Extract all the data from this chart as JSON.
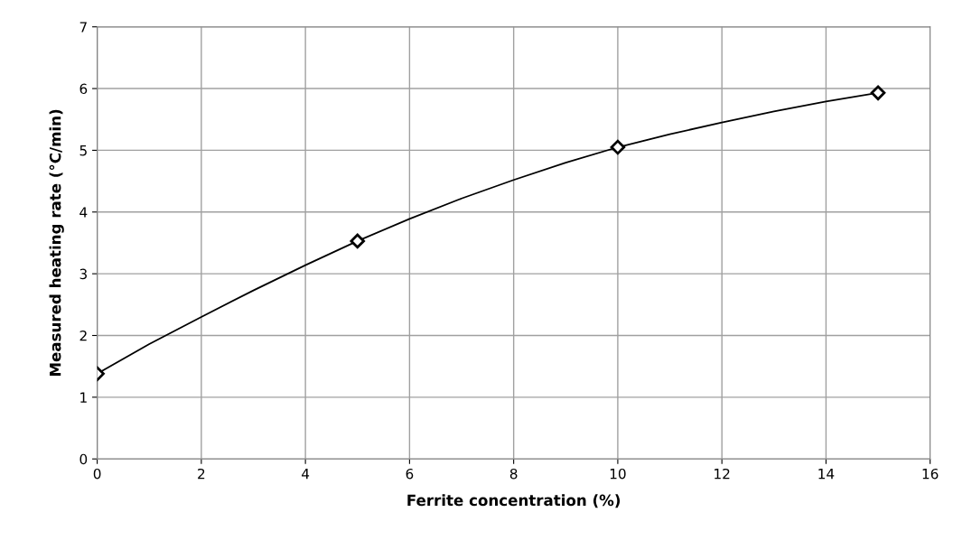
{
  "chart_data": {
    "type": "line",
    "xlabel": "Ferrite concentration (%)",
    "ylabel": "Measured heating rate (°C/min)",
    "x": [
      0,
      5,
      10,
      15
    ],
    "series": [
      {
        "type": "scatter",
        "color": "#000000",
        "values": [
          1.38,
          3.53,
          5.05,
          5.93
        ],
        "marker": "diamond"
      },
      {
        "color": "#000000",
        "x": [
          0,
          1,
          2,
          3,
          4,
          5,
          6,
          7,
          8,
          9,
          10,
          11,
          12,
          13,
          14,
          15
        ],
        "values": [
          1.38,
          1.86,
          2.3,
          2.73,
          3.14,
          3.53,
          3.89,
          4.22,
          4.52,
          4.8,
          5.05,
          5.26,
          5.45,
          5.63,
          5.79,
          5.93
        ],
        "marker": "none"
      }
    ],
    "xlim": [
      0,
      16
    ],
    "xticks": [
      0,
      2,
      4,
      6,
      8,
      10,
      12,
      14,
      16
    ],
    "ylim": [
      0,
      7
    ],
    "yticks": [
      0,
      1,
      2,
      3,
      4,
      5,
      6,
      7
    ],
    "grid": true,
    "legend": false,
    "line_style": "solid"
  }
}
